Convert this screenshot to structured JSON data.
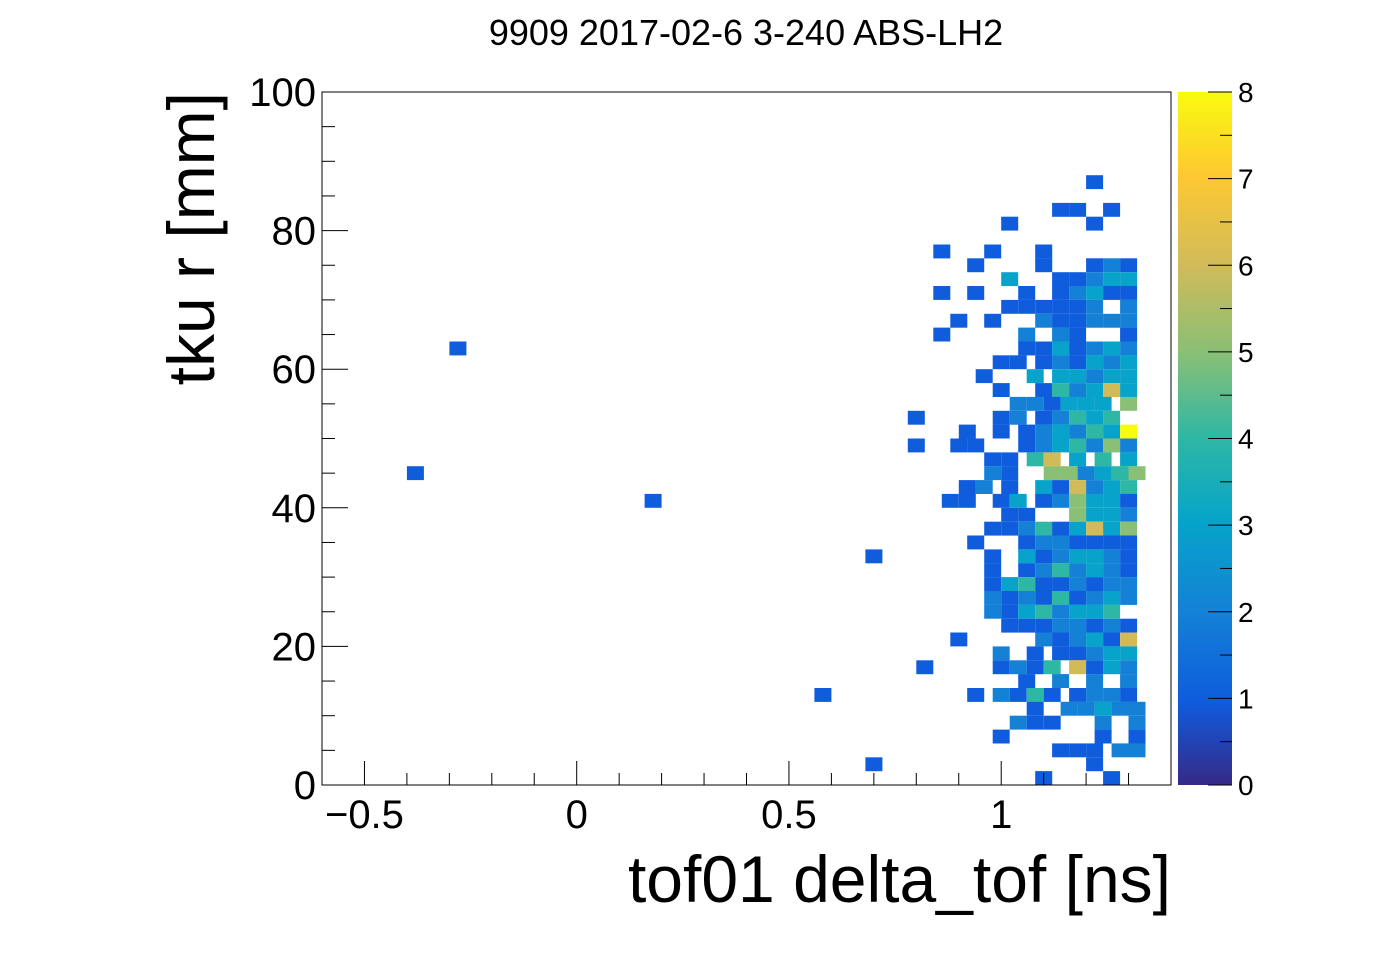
{
  "chart_data": {
    "type": "heatmap",
    "title": "9909 2017-02-6 3-240 ABS-LH2",
    "xlabel": "tof01 delta_tof [ns]",
    "ylabel": "tku r [mm]",
    "xlim": [
      -0.6,
      1.4
    ],
    "ylim": [
      0,
      100
    ],
    "zlim": [
      0,
      8
    ],
    "x_ticks": [
      {
        "value": -0.5,
        "label": "−0.5"
      },
      {
        "value": 0,
        "label": "0"
      },
      {
        "value": 0.5,
        "label": "0.5"
      },
      {
        "value": 1,
        "label": "1"
      }
    ],
    "y_ticks": [
      {
        "value": 0,
        "label": "0"
      },
      {
        "value": 20,
        "label": "20"
      },
      {
        "value": 40,
        "label": "40"
      },
      {
        "value": 60,
        "label": "60"
      },
      {
        "value": 80,
        "label": "80"
      },
      {
        "value": 100,
        "label": "100"
      }
    ],
    "z_ticks": [
      {
        "value": 0,
        "label": "0"
      },
      {
        "value": 1,
        "label": "1"
      },
      {
        "value": 2,
        "label": "2"
      },
      {
        "value": 3,
        "label": "3"
      },
      {
        "value": 4,
        "label": "4"
      },
      {
        "value": 5,
        "label": "5"
      },
      {
        "value": 6,
        "label": "6"
      },
      {
        "value": 7,
        "label": "7"
      },
      {
        "value": 8,
        "label": "8"
      }
    ],
    "colormap": "parula",
    "bin_width_x": 0.04,
    "bin_width_y": 2,
    "cells": [
      [
        1.2,
        86,
        1
      ],
      [
        1.16,
        82,
        1
      ],
      [
        1.12,
        82,
        1
      ],
      [
        1.24,
        82,
        1
      ],
      [
        1.0,
        80,
        1
      ],
      [
        1.2,
        80,
        1
      ],
      [
        0.84,
        76,
        1
      ],
      [
        0.96,
        76,
        1
      ],
      [
        1.08,
        76,
        1
      ],
      [
        0.92,
        74,
        1
      ],
      [
        1.08,
        74,
        1
      ],
      [
        1.2,
        74,
        1
      ],
      [
        1.24,
        74,
        2
      ],
      [
        1.28,
        74,
        1
      ],
      [
        1.0,
        72,
        3
      ],
      [
        1.12,
        72,
        1
      ],
      [
        1.16,
        72,
        1
      ],
      [
        1.2,
        72,
        2
      ],
      [
        1.24,
        72,
        3
      ],
      [
        1.28,
        72,
        3
      ],
      [
        0.84,
        70,
        1
      ],
      [
        0.92,
        70,
        1
      ],
      [
        1.04,
        70,
        1
      ],
      [
        1.12,
        70,
        1
      ],
      [
        1.16,
        70,
        2
      ],
      [
        1.2,
        70,
        3
      ],
      [
        1.24,
        70,
        1
      ],
      [
        1.28,
        70,
        1
      ],
      [
        1.0,
        68,
        1
      ],
      [
        1.04,
        68,
        1
      ],
      [
        1.08,
        68,
        1
      ],
      [
        1.12,
        68,
        1
      ],
      [
        1.16,
        68,
        1
      ],
      [
        1.2,
        68,
        2
      ],
      [
        1.28,
        68,
        2
      ],
      [
        0.88,
        66,
        1
      ],
      [
        0.96,
        66,
        1
      ],
      [
        1.08,
        66,
        2
      ],
      [
        1.12,
        66,
        1
      ],
      [
        1.16,
        66,
        1
      ],
      [
        1.2,
        66,
        2
      ],
      [
        1.24,
        66,
        2
      ],
      [
        1.28,
        66,
        2
      ],
      [
        0.84,
        64,
        1
      ],
      [
        1.04,
        64,
        2
      ],
      [
        1.12,
        64,
        2
      ],
      [
        1.16,
        64,
        1
      ],
      [
        1.28,
        64,
        1
      ],
      [
        1.04,
        62,
        1
      ],
      [
        1.08,
        62,
        1
      ],
      [
        1.12,
        62,
        3
      ],
      [
        1.16,
        62,
        1
      ],
      [
        1.2,
        62,
        2
      ],
      [
        1.24,
        62,
        3
      ],
      [
        1.28,
        62,
        2
      ],
      [
        0.98,
        60,
        1
      ],
      [
        1.02,
        60,
        1
      ],
      [
        1.08,
        60,
        1
      ],
      [
        1.12,
        60,
        2
      ],
      [
        1.16,
        60,
        1
      ],
      [
        1.2,
        60,
        3
      ],
      [
        1.24,
        60,
        2
      ],
      [
        1.28,
        60,
        3
      ],
      [
        0.94,
        58,
        1
      ],
      [
        1.06,
        58,
        3
      ],
      [
        1.12,
        58,
        3
      ],
      [
        1.16,
        58,
        3
      ],
      [
        1.2,
        58,
        2
      ],
      [
        1.24,
        58,
        3
      ],
      [
        1.28,
        58,
        3
      ],
      [
        0.98,
        56,
        1
      ],
      [
        1.08,
        56,
        1
      ],
      [
        1.12,
        56,
        4
      ],
      [
        1.16,
        56,
        2
      ],
      [
        1.2,
        56,
        3
      ],
      [
        1.24,
        56,
        6
      ],
      [
        1.28,
        56,
        3
      ],
      [
        1.02,
        54,
        2
      ],
      [
        1.06,
        54,
        2
      ],
      [
        1.1,
        54,
        1
      ],
      [
        1.14,
        54,
        3
      ],
      [
        1.18,
        54,
        3
      ],
      [
        1.22,
        54,
        3
      ],
      [
        1.28,
        54,
        5
      ],
      [
        0.78,
        52,
        1
      ],
      [
        0.98,
        52,
        1
      ],
      [
        1.02,
        52,
        2
      ],
      [
        1.08,
        52,
        1
      ],
      [
        1.12,
        52,
        2
      ],
      [
        1.16,
        52,
        4
      ],
      [
        1.2,
        52,
        3
      ],
      [
        1.24,
        52,
        4
      ],
      [
        0.9,
        50,
        1
      ],
      [
        0.98,
        50,
        1
      ],
      [
        1.04,
        50,
        1
      ],
      [
        1.08,
        50,
        2
      ],
      [
        1.12,
        50,
        3
      ],
      [
        1.16,
        50,
        2
      ],
      [
        1.2,
        50,
        4
      ],
      [
        1.24,
        50,
        3
      ],
      [
        1.28,
        50,
        8
      ],
      [
        0.78,
        48,
        1
      ],
      [
        0.88,
        48,
        1
      ],
      [
        0.92,
        48,
        1
      ],
      [
        1.04,
        48,
        1
      ],
      [
        1.08,
        48,
        2
      ],
      [
        1.12,
        48,
        3
      ],
      [
        1.16,
        48,
        4
      ],
      [
        1.2,
        48,
        2
      ],
      [
        1.24,
        48,
        5
      ],
      [
        1.28,
        48,
        2
      ],
      [
        0.96,
        46,
        1
      ],
      [
        1.0,
        46,
        1
      ],
      [
        1.06,
        46,
        4
      ],
      [
        1.1,
        46,
        6
      ],
      [
        1.16,
        46,
        3
      ],
      [
        1.22,
        46,
        4
      ],
      [
        1.28,
        46,
        3
      ],
      [
        -0.4,
        44,
        1
      ],
      [
        0.96,
        44,
        2
      ],
      [
        1.0,
        44,
        1
      ],
      [
        1.1,
        44,
        5
      ],
      [
        1.14,
        44,
        5
      ],
      [
        1.18,
        44,
        2
      ],
      [
        1.22,
        44,
        3
      ],
      [
        1.26,
        44,
        4
      ],
      [
        1.3,
        44,
        5
      ],
      [
        0.9,
        42,
        1
      ],
      [
        0.94,
        42,
        2
      ],
      [
        1.0,
        42,
        1
      ],
      [
        1.08,
        42,
        3
      ],
      [
        1.12,
        42,
        1
      ],
      [
        1.16,
        42,
        6
      ],
      [
        1.2,
        42,
        2
      ],
      [
        1.24,
        42,
        3
      ],
      [
        1.28,
        42,
        4
      ],
      [
        0.16,
        40,
        1
      ],
      [
        0.86,
        40,
        1
      ],
      [
        0.9,
        40,
        1
      ],
      [
        0.98,
        40,
        1
      ],
      [
        1.02,
        40,
        3
      ],
      [
        1.08,
        40,
        1
      ],
      [
        1.12,
        40,
        2
      ],
      [
        1.16,
        40,
        5
      ],
      [
        1.2,
        40,
        3
      ],
      [
        1.24,
        40,
        3
      ],
      [
        1.28,
        40,
        1
      ],
      [
        1.0,
        38,
        1
      ],
      [
        1.04,
        38,
        1
      ],
      [
        1.16,
        38,
        5
      ],
      [
        1.2,
        38,
        3
      ],
      [
        1.24,
        38,
        3
      ],
      [
        1.28,
        38,
        2
      ],
      [
        0.96,
        36,
        1
      ],
      [
        1.0,
        36,
        1
      ],
      [
        1.04,
        36,
        2
      ],
      [
        1.08,
        36,
        4
      ],
      [
        1.12,
        36,
        1
      ],
      [
        1.16,
        36,
        3
      ],
      [
        1.2,
        36,
        6
      ],
      [
        1.24,
        36,
        3
      ],
      [
        1.28,
        36,
        5
      ],
      [
        0.92,
        34,
        1
      ],
      [
        1.04,
        34,
        1
      ],
      [
        1.08,
        34,
        2
      ],
      [
        1.12,
        34,
        2
      ],
      [
        1.16,
        34,
        1
      ],
      [
        1.2,
        34,
        1
      ],
      [
        1.24,
        34,
        1
      ],
      [
        1.28,
        34,
        1
      ],
      [
        0.68,
        32,
        1
      ],
      [
        0.96,
        32,
        1
      ],
      [
        1.04,
        32,
        3
      ],
      [
        1.08,
        32,
        1
      ],
      [
        1.12,
        32,
        2
      ],
      [
        1.16,
        32,
        3
      ],
      [
        1.2,
        32,
        3
      ],
      [
        1.24,
        32,
        2
      ],
      [
        1.28,
        32,
        1
      ],
      [
        0.96,
        30,
        1
      ],
      [
        1.04,
        30,
        1
      ],
      [
        1.08,
        30,
        2
      ],
      [
        1.12,
        30,
        4
      ],
      [
        1.16,
        30,
        2
      ],
      [
        1.2,
        30,
        3
      ],
      [
        1.24,
        30,
        2
      ],
      [
        1.28,
        30,
        1
      ],
      [
        0.96,
        28,
        1
      ],
      [
        1.0,
        28,
        3
      ],
      [
        1.04,
        28,
        4
      ],
      [
        1.08,
        28,
        1
      ],
      [
        1.12,
        28,
        1
      ],
      [
        1.16,
        28,
        2
      ],
      [
        1.2,
        28,
        1
      ],
      [
        1.24,
        28,
        2
      ],
      [
        1.28,
        28,
        2
      ],
      [
        0.96,
        26,
        2
      ],
      [
        1.0,
        26,
        1
      ],
      [
        1.04,
        26,
        2
      ],
      [
        1.08,
        26,
        1
      ],
      [
        1.12,
        26,
        4
      ],
      [
        1.16,
        26,
        1
      ],
      [
        1.2,
        26,
        2
      ],
      [
        1.24,
        26,
        3
      ],
      [
        1.28,
        26,
        2
      ],
      [
        0.96,
        24,
        2
      ],
      [
        1.0,
        24,
        1
      ],
      [
        1.04,
        24,
        3
      ],
      [
        1.08,
        24,
        4
      ],
      [
        1.12,
        24,
        2
      ],
      [
        1.16,
        24,
        3
      ],
      [
        1.2,
        24,
        3
      ],
      [
        1.24,
        24,
        4
      ],
      [
        1.0,
        22,
        1
      ],
      [
        1.04,
        22,
        1
      ],
      [
        1.08,
        22,
        1
      ],
      [
        1.12,
        22,
        2
      ],
      [
        1.16,
        22,
        2
      ],
      [
        1.2,
        22,
        1
      ],
      [
        1.24,
        22,
        2
      ],
      [
        1.28,
        22,
        1
      ],
      [
        0.88,
        20,
        1
      ],
      [
        1.08,
        20,
        2
      ],
      [
        1.12,
        20,
        1
      ],
      [
        1.16,
        20,
        2
      ],
      [
        1.2,
        20,
        3
      ],
      [
        1.24,
        20,
        1
      ],
      [
        1.28,
        20,
        6
      ],
      [
        0.98,
        18,
        2
      ],
      [
        1.06,
        18,
        1
      ],
      [
        1.12,
        18,
        1
      ],
      [
        1.16,
        18,
        1
      ],
      [
        1.2,
        18,
        2
      ],
      [
        1.24,
        18,
        3
      ],
      [
        1.28,
        18,
        3
      ],
      [
        0.8,
        16,
        1
      ],
      [
        0.98,
        16,
        1
      ],
      [
        1.02,
        16,
        2
      ],
      [
        1.06,
        16,
        1
      ],
      [
        1.1,
        16,
        4
      ],
      [
        1.16,
        16,
        6
      ],
      [
        1.2,
        16,
        1
      ],
      [
        1.24,
        16,
        3
      ],
      [
        1.28,
        16,
        2
      ],
      [
        1.04,
        14,
        1
      ],
      [
        1.12,
        14,
        2
      ],
      [
        1.2,
        14,
        2
      ],
      [
        1.28,
        14,
        2
      ],
      [
        0.56,
        12,
        1
      ],
      [
        0.92,
        12,
        1
      ],
      [
        0.98,
        12,
        2
      ],
      [
        1.02,
        12,
        1
      ],
      [
        1.06,
        12,
        4
      ],
      [
        1.1,
        12,
        1
      ],
      [
        1.16,
        12,
        1
      ],
      [
        1.2,
        12,
        2
      ],
      [
        1.24,
        12,
        2
      ],
      [
        1.28,
        12,
        1
      ],
      [
        1.06,
        10,
        1
      ],
      [
        1.14,
        10,
        2
      ],
      [
        1.18,
        10,
        2
      ],
      [
        1.22,
        10,
        3
      ],
      [
        1.26,
        10,
        2
      ],
      [
        1.3,
        10,
        2
      ],
      [
        1.02,
        8,
        2
      ],
      [
        1.06,
        8,
        1
      ],
      [
        1.1,
        8,
        1
      ],
      [
        1.22,
        8,
        2
      ],
      [
        1.3,
        8,
        2
      ],
      [
        0.98,
        6,
        1
      ],
      [
        1.22,
        6,
        1
      ],
      [
        1.3,
        6,
        1
      ],
      [
        1.12,
        4,
        1
      ],
      [
        1.16,
        4,
        1
      ],
      [
        1.2,
        4,
        1
      ],
      [
        1.26,
        4,
        2
      ],
      [
        1.3,
        4,
        2
      ],
      [
        0.68,
        2,
        1
      ],
      [
        1.2,
        2,
        1
      ],
      [
        1.08,
        0,
        1
      ],
      [
        1.24,
        0,
        1
      ],
      [
        -0.3,
        62,
        1
      ]
    ]
  }
}
